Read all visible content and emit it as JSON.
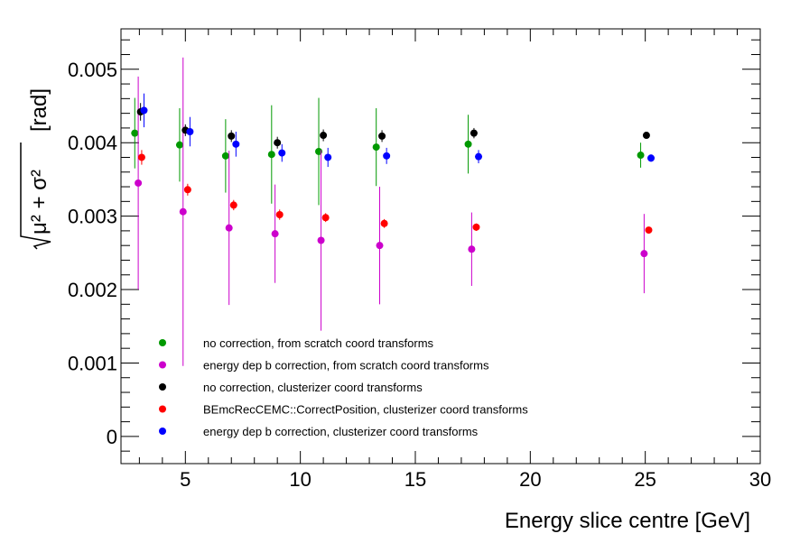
{
  "chart_data": {
    "type": "scatter",
    "title": "",
    "xlabel": "Energy slice centre  [GeV]",
    "ylabel": "[rad]",
    "ylabel_root_expr": "μ² + σ²",
    "xlim": [
      2.2,
      30
    ],
    "ylim": [
      -0.00037,
      0.00555
    ],
    "x_ticks": [
      5,
      10,
      15,
      20,
      25,
      30
    ],
    "x_tick_labels": [
      "5",
      "10",
      "15",
      "20",
      "25",
      "30"
    ],
    "y_ticks": [
      0,
      0.001,
      0.002,
      0.003,
      0.004,
      0.005
    ],
    "y_tick_labels": [
      "0",
      "0.001",
      "0.002",
      "0.003",
      "0.004",
      "0.005"
    ],
    "grid": false,
    "legend_position": "bottom-left",
    "series": [
      {
        "name": "no correction, from scratch coord transforms",
        "color": "#009900",
        "points": [
          {
            "x": 2.8,
            "y": 0.00413,
            "err": 0.00048
          },
          {
            "x": 4.75,
            "y": 0.00397,
            "err": 0.0005
          },
          {
            "x": 6.75,
            "y": 0.00382,
            "err": 0.0005
          },
          {
            "x": 8.75,
            "y": 0.00384,
            "err": 0.00067
          },
          {
            "x": 10.8,
            "y": 0.00388,
            "err": 0.00073
          },
          {
            "x": 13.3,
            "y": 0.00394,
            "err": 0.00053
          },
          {
            "x": 17.3,
            "y": 0.00398,
            "err": 0.0004
          },
          {
            "x": 24.8,
            "y": 0.00383,
            "err": 0.00017
          }
        ]
      },
      {
        "name": "energy dep b correction, from scratch coord transforms",
        "color": "#cc00cc",
        "points": [
          {
            "x": 2.95,
            "y": 0.00345,
            "err": 0.00145
          },
          {
            "x": 4.9,
            "y": 0.00306,
            "err": 0.0021
          },
          {
            "x": 6.9,
            "y": 0.00284,
            "err": 0.00105
          },
          {
            "x": 8.9,
            "y": 0.00276,
            "err": 0.00067
          },
          {
            "x": 10.9,
            "y": 0.00267,
            "err": 0.00123
          },
          {
            "x": 13.45,
            "y": 0.0026,
            "err": 0.0008
          },
          {
            "x": 17.45,
            "y": 0.00255,
            "err": 0.0005
          },
          {
            "x": 24.95,
            "y": 0.00249,
            "err": 0.00054
          }
        ]
      },
      {
        "name": "no correction, clusterizer coord transforms",
        "color": "#000000",
        "points": [
          {
            "x": 3.05,
            "y": 0.00442,
            "err": 0.00012
          },
          {
            "x": 5.0,
            "y": 0.00417,
            "err": 8e-05
          },
          {
            "x": 7.0,
            "y": 0.00409,
            "err": 8e-05
          },
          {
            "x": 9.0,
            "y": 0.004,
            "err": 8e-05
          },
          {
            "x": 11.0,
            "y": 0.0041,
            "err": 8e-05
          },
          {
            "x": 13.55,
            "y": 0.00409,
            "err": 8e-05
          },
          {
            "x": 17.55,
            "y": 0.00413,
            "err": 7e-05
          },
          {
            "x": 25.05,
            "y": 0.0041,
            "err": 4e-05
          }
        ]
      },
      {
        "name": "BEmcRecCEMC::CorrectPosition, clusterizer coord transforms",
        "color": "#ff0000",
        "points": [
          {
            "x": 3.1,
            "y": 0.0038,
            "err": 0.0001
          },
          {
            "x": 5.1,
            "y": 0.00336,
            "err": 8e-05
          },
          {
            "x": 7.1,
            "y": 0.00315,
            "err": 7e-05
          },
          {
            "x": 9.1,
            "y": 0.00302,
            "err": 7e-05
          },
          {
            "x": 11.1,
            "y": 0.00298,
            "err": 6e-05
          },
          {
            "x": 13.65,
            "y": 0.0029,
            "err": 6e-05
          },
          {
            "x": 17.65,
            "y": 0.00285,
            "err": 5e-05
          },
          {
            "x": 25.15,
            "y": 0.00281,
            "err": 4e-05
          }
        ]
      },
      {
        "name": "energy dep b correction, clusterizer coord transforms",
        "color": "#0000ff",
        "points": [
          {
            "x": 3.2,
            "y": 0.00444,
            "err": 0.00023
          },
          {
            "x": 5.2,
            "y": 0.00415,
            "err": 0.0002
          },
          {
            "x": 7.2,
            "y": 0.00398,
            "err": 0.00017
          },
          {
            "x": 9.2,
            "y": 0.00386,
            "err": 0.00012
          },
          {
            "x": 11.2,
            "y": 0.0038,
            "err": 0.00013
          },
          {
            "x": 13.75,
            "y": 0.00382,
            "err": 0.00011
          },
          {
            "x": 17.75,
            "y": 0.00381,
            "err": 9e-05
          },
          {
            "x": 25.25,
            "y": 0.00379,
            "err": 5e-05
          }
        ]
      }
    ]
  }
}
